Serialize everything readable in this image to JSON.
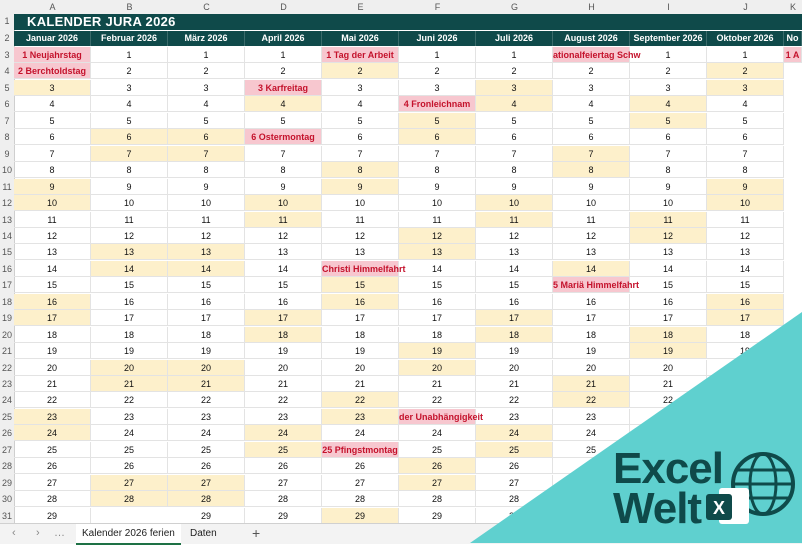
{
  "title": "KALENDER JURA 2026",
  "columns": [
    "A",
    "B",
    "C",
    "D",
    "E",
    "F",
    "G",
    "H",
    "I",
    "J"
  ],
  "extra_col_label": "No",
  "months": [
    "Januar 2026",
    "Februar 2026",
    "März 2026",
    "April 2026",
    "Mai 2026",
    "Juni 2026",
    "Juli 2026",
    "August 2026",
    "September 2026",
    "Oktober 2026"
  ],
  "extra_month_label": "No",
  "month_lengths": [
    31,
    28,
    31,
    30,
    31,
    30,
    31,
    31,
    30,
    31
  ],
  "month_start_weekday": [
    4,
    0,
    0,
    3,
    5,
    1,
    3,
    6,
    2,
    4
  ],
  "holidays": {
    "0": {
      "1": "1 Neujahrstag",
      "2": "2 Berchtoldstag"
    },
    "3": {
      "3": "3 Karfreitag",
      "6": "6 Ostermontag"
    },
    "4": {
      "1": "1 Tag der Arbeit",
      "14": "Christi Himmelfahrt",
      "25": "25 Pfingstmontag"
    },
    "5": {
      "4": "4 Fronleichnam",
      "23": "der Unabhängigkeit"
    },
    "7": {
      "1": "ationalfeiertag Schw",
      "15": "5 Mariä Himmelfahrt"
    }
  },
  "extra_col_visible_holiday": "1 A",
  "tabs": [
    "Kalender 2026 ferien",
    "Daten"
  ],
  "brand": {
    "line1": "Excel",
    "line2": "Welt",
    "color_bg": "#5fd0cf",
    "color_text": "#0f4a4a"
  }
}
